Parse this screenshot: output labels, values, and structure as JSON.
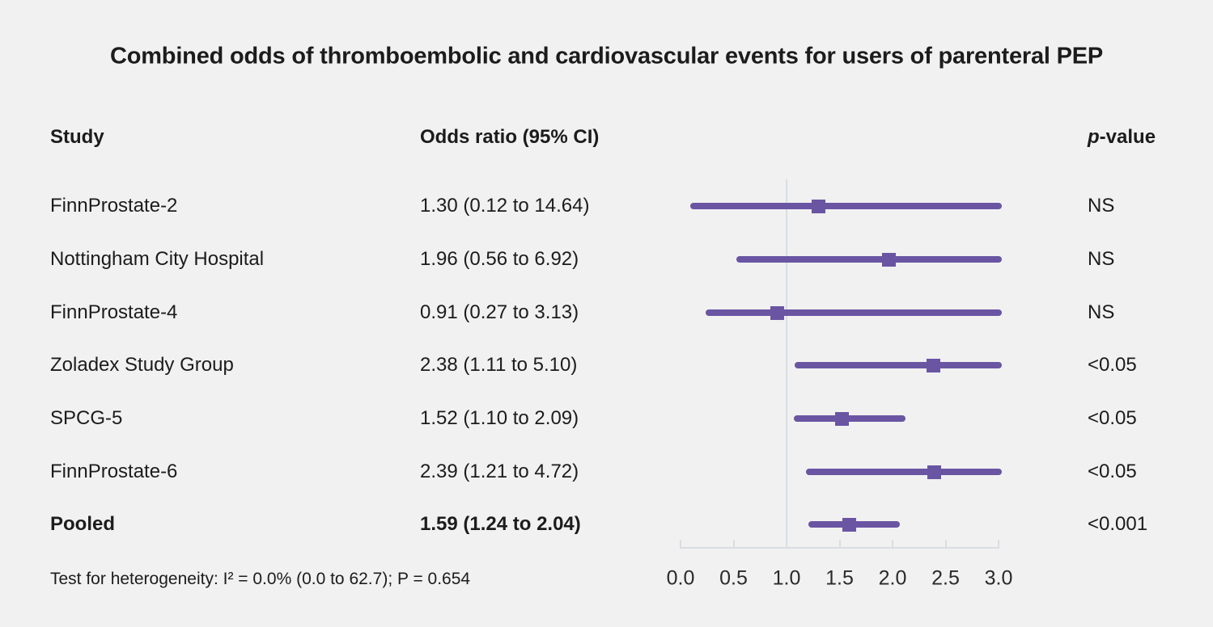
{
  "title": "Combined odds of thromboembolic and cardiovascular events for users of parenteral PEP",
  "columns": {
    "study": "Study",
    "odds_ratio": "Odds ratio (95% CI)",
    "p_prefix": "p",
    "p_suffix": "-value"
  },
  "footer": "Test for heterogeneity: I² = 0.0% (0.0 to 62.7); P = 0.654",
  "colors": {
    "accent": "#6a55a3",
    "axis": "#d9dde3",
    "background": "#f1f1f1",
    "text": "#1c1c1c"
  },
  "chart_data": {
    "type": "forest",
    "title": "Combined odds of thromboembolic and cardiovascular events for users of parenteral PEP",
    "x_ticks": [
      0.0,
      0.5,
      1.0,
      1.5,
      2.0,
      2.5,
      3.0
    ],
    "xlim": [
      0.0,
      3.0
    ],
    "reference_line": 1.0,
    "rows": [
      {
        "study": "FinnProstate-2",
        "or": 1.3,
        "ci_low": 0.12,
        "ci_high": 14.64,
        "or_label": "1.30 (0.12 to 14.64)",
        "p": "NS",
        "bold": false
      },
      {
        "study": "Nottingham City Hospital",
        "or": 1.96,
        "ci_low": 0.56,
        "ci_high": 6.92,
        "or_label": "1.96 (0.56 to 6.92)",
        "p": "NS",
        "bold": false
      },
      {
        "study": "FinnProstate-4",
        "or": 0.91,
        "ci_low": 0.27,
        "ci_high": 3.13,
        "or_label": "0.91 (0.27 to 3.13)",
        "p": "NS",
        "bold": false
      },
      {
        "study": "Zoladex Study Group",
        "or": 2.38,
        "ci_low": 1.11,
        "ci_high": 5.1,
        "or_label": "2.38 (1.11 to 5.10)",
        "p": "<0.05",
        "bold": false
      },
      {
        "study": "SPCG-5",
        "or": 1.52,
        "ci_low": 1.1,
        "ci_high": 2.09,
        "or_label": "1.52 (1.10 to 2.09)",
        "p": "<0.05",
        "bold": false
      },
      {
        "study": "FinnProstate-6",
        "or": 2.39,
        "ci_low": 1.21,
        "ci_high": 4.72,
        "or_label": "2.39 (1.21 to 4.72)",
        "p": "<0.05",
        "bold": false
      },
      {
        "study": "Pooled",
        "or": 1.59,
        "ci_low": 1.24,
        "ci_high": 2.04,
        "or_label": "1.59 (1.24 to 2.04)",
        "p": "<0.001",
        "bold": true
      }
    ],
    "heterogeneity_note": "Test for heterogeneity: I² = 0.0% (0.0 to 62.7); P = 0.654"
  }
}
